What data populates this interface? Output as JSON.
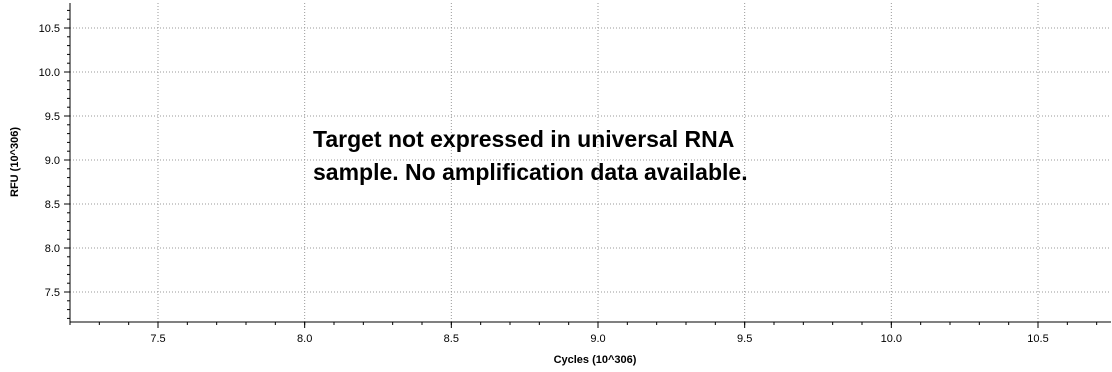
{
  "chart_data": {
    "type": "line",
    "xlabel": "Cycles (10^306)",
    "ylabel": "RFU (10^306)",
    "xlim": [
      7.2,
      10.75
    ],
    "ylim": [
      7.2,
      10.75
    ],
    "x_ticks": [
      "7.5",
      "8.0",
      "8.5",
      "9.0",
      "9.5",
      "10.0",
      "10.5"
    ],
    "y_ticks": [
      "7.5",
      "8.0",
      "8.5",
      "9.0",
      "9.5",
      "10.0",
      "10.5"
    ],
    "x_tick_values": [
      7.5,
      8.0,
      8.5,
      9.0,
      9.5,
      10.0,
      10.5
    ],
    "y_tick_values": [
      7.5,
      8.0,
      8.5,
      9.0,
      9.5,
      10.0,
      10.5
    ],
    "grid": true,
    "series": [],
    "annotation": {
      "line1": "Target not expressed in universal RNA",
      "line2": "sample.  No amplification data available."
    }
  }
}
